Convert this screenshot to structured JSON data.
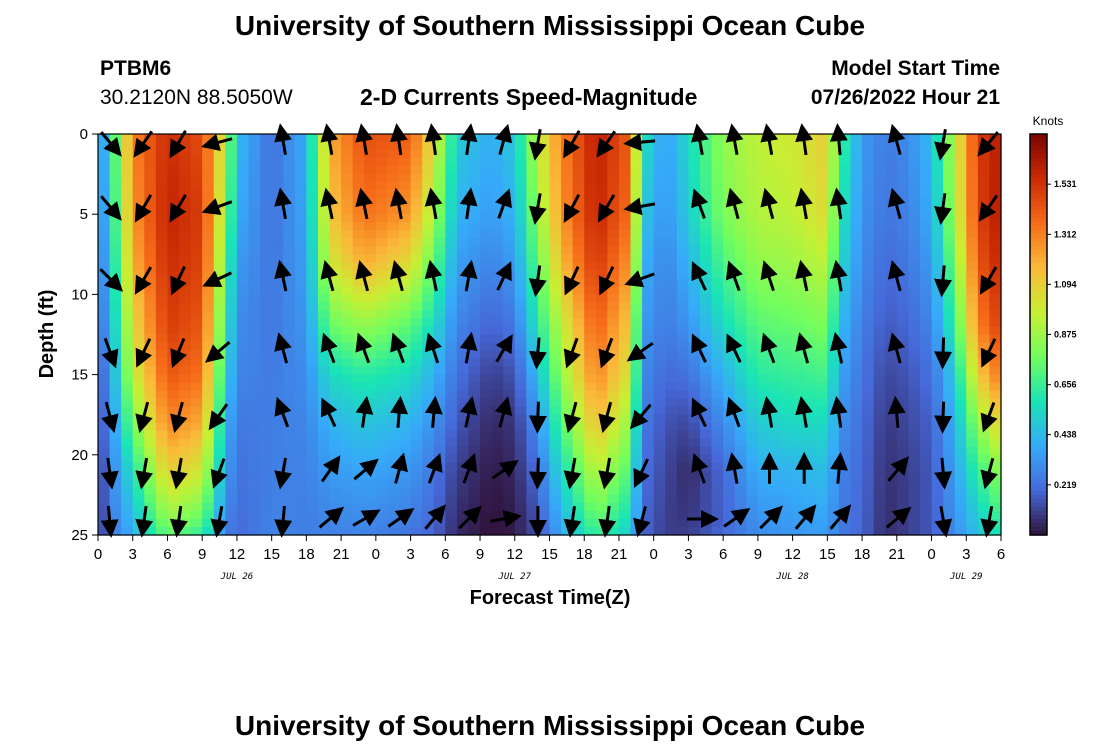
{
  "page": {
    "title": "University of Southern Mississippi Ocean Cube",
    "title_repeat": "University of Southern Mississippi Ocean Cube",
    "station": "PTBM6",
    "coords": "30.2120N  88.5050W",
    "subtitle": "2-D Currents Speed-Magnitude",
    "model_start_label": "Model Start Time",
    "model_start_value": "07/26/2022 Hour 21"
  },
  "chart_data": {
    "type": "heatmap",
    "title": "2-D Currents Speed-Magnitude",
    "xlabel": "Forecast Time(Z)",
    "ylabel": "Depth (ft)",
    "x_ticks": [
      "0",
      "3",
      "6",
      "9",
      "12",
      "15",
      "18",
      "21",
      "0",
      "3",
      "6",
      "9",
      "12",
      "15",
      "18",
      "21",
      "0",
      "3",
      "6",
      "9",
      "12",
      "15",
      "18",
      "21",
      "0",
      "3",
      "6"
    ],
    "x_hours": [
      0,
      3,
      6,
      9,
      12,
      15,
      18,
      21,
      24,
      27,
      30,
      33,
      36,
      39,
      42,
      45,
      48,
      51,
      54,
      57,
      60,
      63,
      66,
      69,
      72,
      75,
      78
    ],
    "date_labels": [
      {
        "text": "JUL 26",
        "hour": 12
      },
      {
        "text": "JUL 27",
        "hour": 36
      },
      {
        "text": "JUL 28",
        "hour": 60
      },
      {
        "text": "JUL 29",
        "hour": 75
      }
    ],
    "y_ticks": [
      0,
      5,
      10,
      15,
      20,
      25
    ],
    "ylim": [
      0,
      25
    ],
    "xlim": [
      0,
      78
    ],
    "colorbar": {
      "unit": "Knots",
      "ticks": [
        "1.531",
        "1.312",
        "1.094",
        "0.875",
        "0.656",
        "0.438",
        "0.219"
      ],
      "tick_values": [
        1.531,
        1.312,
        1.094,
        0.875,
        0.656,
        0.438,
        0.219
      ],
      "range": [
        0,
        1.75
      ],
      "colors": [
        "#30123b",
        "#4669d9",
        "#36aaf9",
        "#1ae4b6",
        "#72fe5e",
        "#c8ef34",
        "#faba39",
        "#f66b19",
        "#ca2a04",
        "#7a0403"
      ]
    },
    "depth_points": [
      0,
      5,
      8,
      12,
      15,
      18,
      21,
      24,
      25
    ],
    "profiles": [
      {
        "hour": 0,
        "speeds": [
          0.26,
          0.24,
          0.22,
          0.2,
          0.15,
          0.12,
          0.08,
          0.06,
          0.05
        ]
      },
      {
        "hour": 1,
        "speeds": [
          0.55,
          0.5,
          0.45,
          0.38,
          0.32,
          0.28,
          0.25,
          0.24,
          0.24
        ]
      },
      {
        "hour": 3,
        "speeds": [
          1.3,
          1.25,
          1.18,
          1.05,
          0.95,
          0.78,
          0.58,
          0.45,
          0.4
        ]
      },
      {
        "hour": 6,
        "speeds": [
          1.55,
          1.58,
          1.55,
          1.5,
          1.42,
          1.3,
          1.1,
          0.85,
          0.75
        ]
      },
      {
        "hour": 9,
        "speeds": [
          1.45,
          1.5,
          1.48,
          1.42,
          1.35,
          1.2,
          1.0,
          0.75,
          0.62
        ]
      },
      {
        "hour": 11,
        "speeds": [
          0.95,
          0.85,
          0.75,
          0.65,
          0.55,
          0.45,
          0.38,
          0.3,
          0.27
        ]
      },
      {
        "hour": 12,
        "speeds": [
          0.45,
          0.4,
          0.35,
          0.3,
          0.28,
          0.24,
          0.22,
          0.2,
          0.2
        ]
      },
      {
        "hour": 15,
        "speeds": [
          0.22,
          0.22,
          0.23,
          0.24,
          0.25,
          0.26,
          0.26,
          0.27,
          0.27
        ]
      },
      {
        "hour": 18,
        "speeds": [
          0.4,
          0.38,
          0.36,
          0.33,
          0.3,
          0.28,
          0.27,
          0.26,
          0.26
        ]
      },
      {
        "hour": 20,
        "speeds": [
          1.2,
          1.12,
          1.0,
          0.75,
          0.55,
          0.42,
          0.34,
          0.28,
          0.27
        ]
      },
      {
        "hour": 23,
        "speeds": [
          1.45,
          1.35,
          1.2,
          0.85,
          0.62,
          0.48,
          0.38,
          0.3,
          0.27
        ]
      },
      {
        "hour": 27,
        "speeds": [
          1.4,
          1.25,
          1.05,
          0.72,
          0.55,
          0.42,
          0.33,
          0.26,
          0.23
        ]
      },
      {
        "hour": 29,
        "speeds": [
          1.05,
          0.9,
          0.75,
          0.55,
          0.42,
          0.32,
          0.24,
          0.2,
          0.18
        ]
      },
      {
        "hour": 31,
        "speeds": [
          0.5,
          0.42,
          0.36,
          0.28,
          0.22,
          0.16,
          0.1,
          0.06,
          0.05
        ]
      },
      {
        "hour": 34,
        "speeds": [
          0.4,
          0.35,
          0.28,
          0.18,
          0.1,
          0.05,
          0.02,
          0.0,
          0.0
        ]
      },
      {
        "hour": 36,
        "speeds": [
          0.5,
          0.42,
          0.35,
          0.24,
          0.15,
          0.08,
          0.05,
          0.02,
          0.02
        ]
      },
      {
        "hour": 38,
        "speeds": [
          0.95,
          0.85,
          0.75,
          0.6,
          0.45,
          0.32,
          0.22,
          0.15,
          0.14
        ]
      },
      {
        "hour": 40,
        "speeds": [
          1.3,
          1.25,
          1.15,
          0.95,
          0.85,
          0.7,
          0.55,
          0.42,
          0.38
        ]
      },
      {
        "hour": 43,
        "speeds": [
          1.6,
          1.58,
          1.52,
          1.4,
          1.3,
          1.15,
          0.95,
          0.75,
          0.65
        ]
      },
      {
        "hour": 46,
        "speeds": [
          1.4,
          1.35,
          1.25,
          1.1,
          1.0,
          0.85,
          0.7,
          0.55,
          0.5
        ]
      },
      {
        "hour": 47,
        "speeds": [
          0.6,
          0.5,
          0.42,
          0.35,
          0.3,
          0.25,
          0.22,
          0.2,
          0.2
        ]
      },
      {
        "hour": 49,
        "speeds": [
          0.35,
          0.32,
          0.28,
          0.25,
          0.2,
          0.15,
          0.12,
          0.1,
          0.1
        ]
      },
      {
        "hour": 51,
        "speeds": [
          0.55,
          0.5,
          0.42,
          0.32,
          0.22,
          0.12,
          0.05,
          0.08,
          0.1
        ]
      },
      {
        "hour": 54,
        "speeds": [
          0.85,
          0.8,
          0.7,
          0.55,
          0.42,
          0.3,
          0.2,
          0.18,
          0.2
        ]
      },
      {
        "hour": 57,
        "speeds": [
          0.95,
          0.92,
          0.85,
          0.72,
          0.62,
          0.5,
          0.4,
          0.32,
          0.3
        ]
      },
      {
        "hour": 60,
        "speeds": [
          1.0,
          0.95,
          0.88,
          0.75,
          0.65,
          0.55,
          0.42,
          0.35,
          0.33
        ]
      },
      {
        "hour": 63,
        "speeds": [
          1.1,
          1.05,
          0.95,
          0.8,
          0.68,
          0.55,
          0.45,
          0.38,
          0.35
        ]
      },
      {
        "hour": 64,
        "speeds": [
          0.7,
          0.62,
          0.55,
          0.45,
          0.38,
          0.32,
          0.28,
          0.25,
          0.25
        ]
      },
      {
        "hour": 66,
        "speeds": [
          0.35,
          0.32,
          0.3,
          0.26,
          0.23,
          0.21,
          0.2,
          0.19,
          0.19
        ]
      },
      {
        "hour": 68,
        "speeds": [
          0.25,
          0.23,
          0.2,
          0.16,
          0.12,
          0.09,
          0.07,
          0.06,
          0.06
        ]
      },
      {
        "hour": 70,
        "speeds": [
          0.3,
          0.27,
          0.24,
          0.19,
          0.15,
          0.12,
          0.1,
          0.1,
          0.1
        ]
      },
      {
        "hour": 72,
        "speeds": [
          0.45,
          0.4,
          0.35,
          0.28,
          0.22,
          0.18,
          0.16,
          0.16,
          0.16
        ]
      },
      {
        "hour": 74,
        "speeds": [
          0.95,
          0.9,
          0.8,
          0.65,
          0.5,
          0.42,
          0.36,
          0.32,
          0.3
        ]
      },
      {
        "hour": 76,
        "speeds": [
          1.5,
          1.48,
          1.42,
          1.3,
          1.1,
          0.85,
          0.65,
          0.5,
          0.45
        ]
      },
      {
        "hour": 78,
        "speeds": [
          1.62,
          1.62,
          1.58,
          1.5,
          1.35,
          1.1,
          0.85,
          0.68,
          0.6
        ]
      }
    ],
    "vectors": {
      "depths": [
        0.5,
        4.5,
        9,
        13.5,
        17.5,
        21,
        24
      ],
      "columns": [
        {
          "hour": 1,
          "angles": [
            140,
            140,
            135,
            160,
            165,
            172,
            175
          ]
        },
        {
          "hour": 4,
          "angles": [
            -145,
            -150,
            -150,
            -155,
            -165,
            -170,
            -172
          ]
        },
        {
          "hour": 7,
          "angles": [
            -150,
            -150,
            -155,
            -158,
            -165,
            -170,
            -172
          ]
        },
        {
          "hour": 10.5,
          "angles": [
            -105,
            -110,
            -115,
            -130,
            -145,
            -160,
            -170
          ]
        },
        {
          "hour": 16,
          "angles": [
            -10,
            -10,
            -12,
            -15,
            -20,
            -170,
            -175
          ]
        },
        {
          "hour": 20,
          "angles": [
            -10,
            -12,
            -15,
            -20,
            -25,
            35,
            50
          ]
        },
        {
          "hour": 23,
          "angles": [
            -10,
            -12,
            -15,
            -20,
            8,
            50,
            60
          ]
        },
        {
          "hour": 26,
          "angles": [
            -8,
            -10,
            -15,
            -20,
            5,
            15,
            55
          ]
        },
        {
          "hour": 29,
          "angles": [
            -8,
            -10,
            -12,
            -18,
            5,
            20,
            40
          ]
        },
        {
          "hour": 32,
          "angles": [
            8,
            8,
            10,
            10,
            12,
            20,
            45
          ]
        },
        {
          "hour": 35,
          "angles": [
            15,
            20,
            25,
            30,
            15,
            55,
            80
          ]
        },
        {
          "hour": 38,
          "angles": [
            -170,
            -170,
            -172,
            -175,
            -178,
            -178,
            180
          ]
        },
        {
          "hour": 41,
          "angles": [
            -150,
            -152,
            -155,
            -160,
            -165,
            -170,
            -172
          ]
        },
        {
          "hour": 44,
          "angles": [
            -145,
            -150,
            -155,
            -160,
            -165,
            -170,
            -172
          ]
        },
        {
          "hour": 47,
          "angles": [
            -95,
            -100,
            -110,
            -125,
            -140,
            -155,
            -165
          ]
        },
        {
          "hour": 52,
          "angles": [
            -10,
            -20,
            -25,
            -25,
            -25,
            -20,
            90
          ]
        },
        {
          "hour": 55,
          "angles": [
            -10,
            -15,
            -20,
            -25,
            -20,
            -10,
            55
          ]
        },
        {
          "hour": 58,
          "angles": [
            -10,
            -15,
            -18,
            -20,
            -10,
            0,
            45
          ]
        },
        {
          "hour": 61,
          "angles": [
            -8,
            -10,
            -12,
            -15,
            -10,
            0,
            40
          ]
        },
        {
          "hour": 64,
          "angles": [
            -5,
            -8,
            -10,
            -12,
            -8,
            5,
            40
          ]
        },
        {
          "hour": 69,
          "angles": [
            -15,
            -15,
            -15,
            -15,
            -5,
            40,
            50
          ]
        },
        {
          "hour": 73,
          "angles": [
            -170,
            -172,
            -175,
            -178,
            -178,
            175,
            170
          ]
        },
        {
          "hour": 77,
          "angles": [
            -140,
            -145,
            -150,
            -155,
            -160,
            -165,
            -170
          ]
        }
      ]
    }
  }
}
